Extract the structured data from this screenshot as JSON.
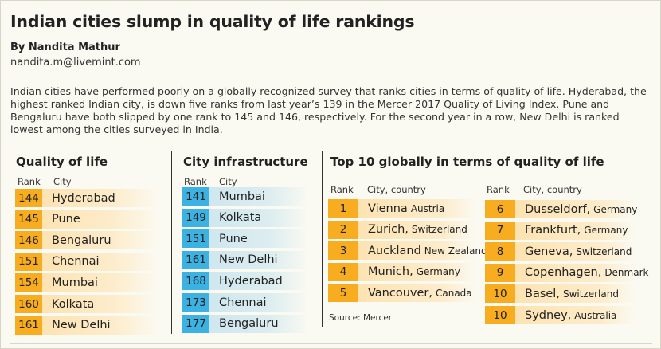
{
  "article": {
    "headline": "Indian cities slump in quality of life rankings",
    "byline": "By Nandita Mathur",
    "email": "nandita.m@livemint.com",
    "intro": "Indian cities have performed poorly on a globally recognized survey that ranks cities in terms of quality of life. Hyderabad, the highest ranked Indian city, is down five ranks from last year’s 139 in the Mercer 2017 Quality of Living Index. Pune and Bengaluru have both slipped by one rank to 145 and 146, respectively. For the second year in a row, New Delhi is ranked lowest among the cities surveyed in India."
  },
  "quality_of_life": {
    "title": "Quality of life",
    "rank_header": "Rank",
    "city_header": "City",
    "color": "#f7ad1f",
    "rows": [
      {
        "rank": "144",
        "city": "Hyderabad"
      },
      {
        "rank": "145",
        "city": "Pune"
      },
      {
        "rank": "146",
        "city": "Bengaluru"
      },
      {
        "rank": "151",
        "city": "Chennai"
      },
      {
        "rank": "154",
        "city": "Mumbai"
      },
      {
        "rank": "160",
        "city": "Kolkata"
      },
      {
        "rank": "161",
        "city": "New Delhi"
      }
    ]
  },
  "city_infrastructure": {
    "title": "City infrastructure",
    "rank_header": "Rank",
    "city_header": "City",
    "color": "#3bb2e2",
    "rows": [
      {
        "rank": "141",
        "city": "Mumbai"
      },
      {
        "rank": "149",
        "city": "Kolkata"
      },
      {
        "rank": "151",
        "city": "Pune"
      },
      {
        "rank": "161",
        "city": "New Delhi"
      },
      {
        "rank": "168",
        "city": "Hyderabad"
      },
      {
        "rank": "173",
        "city": "Chennai"
      },
      {
        "rank": "177",
        "city": "Bengaluru"
      }
    ]
  },
  "top10": {
    "title": "Top 10 globally in terms of quality of life",
    "rank_header": "Rank",
    "city_header": "City, country",
    "color": "#f7ad1f",
    "left": [
      {
        "rank": "1",
        "city": "Vienna",
        "country": "Austria"
      },
      {
        "rank": "2",
        "city": "Zurich,",
        "country": "Switzerland"
      },
      {
        "rank": "3",
        "city": "Auckland",
        "country": "New Zealand"
      },
      {
        "rank": "4",
        "city": "Munich,",
        "country": "Germany"
      },
      {
        "rank": "5",
        "city": "Vancouver,",
        "country": "Canada"
      }
    ],
    "right": [
      {
        "rank": "6",
        "city": "Dusseldorf,",
        "country": "Germany"
      },
      {
        "rank": "7",
        "city": "Frankfurt,",
        "country": "Germany"
      },
      {
        "rank": "8",
        "city": "Geneva,",
        "country": "Switzerland"
      },
      {
        "rank": "9",
        "city": "Copenhagen,",
        "country": "Denmark"
      },
      {
        "rank": "10",
        "city": "Basel,",
        "country": "Switzerland"
      },
      {
        "rank": "10",
        "city": "Sydney,",
        "country": "Australia"
      }
    ],
    "source": "Source: Mercer"
  }
}
